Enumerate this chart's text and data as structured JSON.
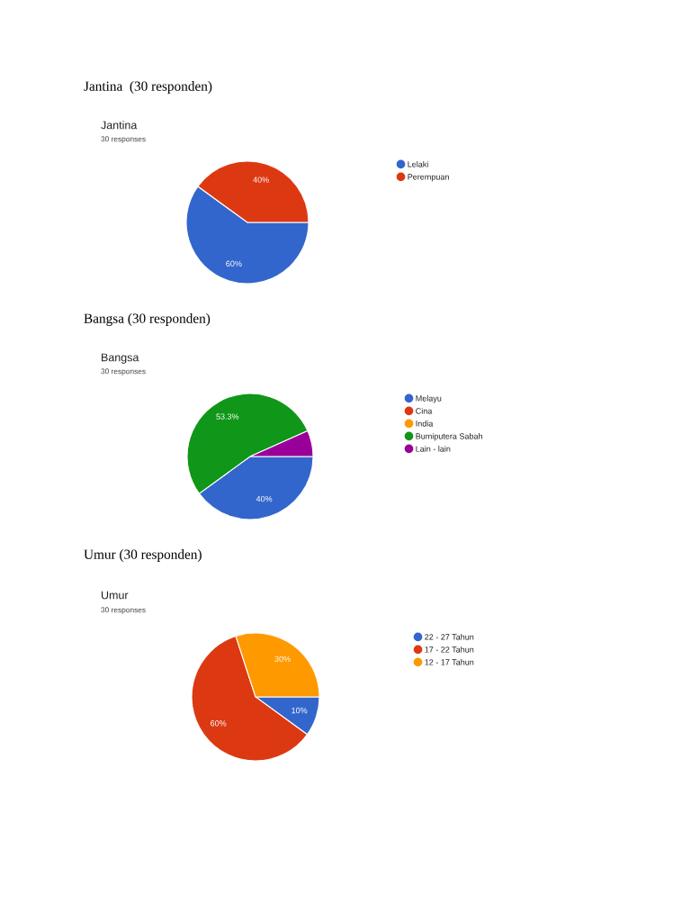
{
  "chart_data": [
    {
      "type": "pie",
      "title": "Jantina  (30 responden)",
      "subtitle": "Jantina",
      "annotations": [
        "30 responses"
      ],
      "categories": [
        "Lelaki",
        "Perempuan"
      ],
      "values": [
        60,
        40
      ],
      "colors": [
        "#3366cc",
        "#dc3912"
      ],
      "value_labels": [
        "60%",
        "40%"
      ],
      "legend": "right"
    },
    {
      "type": "pie",
      "title": "Bangsa (30 responden)",
      "subtitle": "Bangsa",
      "annotations": [
        "30 responses"
      ],
      "categories": [
        "Melayu",
        "Cina",
        "India",
        "Bumiputera Sabah",
        "Lain - lain"
      ],
      "values": [
        40,
        0,
        0,
        53.3,
        6.7
      ],
      "colors": [
        "#3366cc",
        "#dc3912",
        "#ff9900",
        "#109618",
        "#990099"
      ],
      "value_labels": [
        "40%",
        null,
        null,
        "53.3%",
        null
      ],
      "legend": "right"
    },
    {
      "type": "pie",
      "title": "Umur (30 responden)",
      "subtitle": "Umur",
      "annotations": [
        "30 responses"
      ],
      "categories": [
        "22 - 27 Tahun",
        "17 - 22 Tahun",
        "12 - 17 Tahun"
      ],
      "values": [
        10,
        60,
        30
      ],
      "colors": [
        "#3366cc",
        "#dc3912",
        "#ff9900"
      ],
      "value_labels": [
        "10%",
        "60%",
        "30%"
      ],
      "legend": "right"
    }
  ]
}
